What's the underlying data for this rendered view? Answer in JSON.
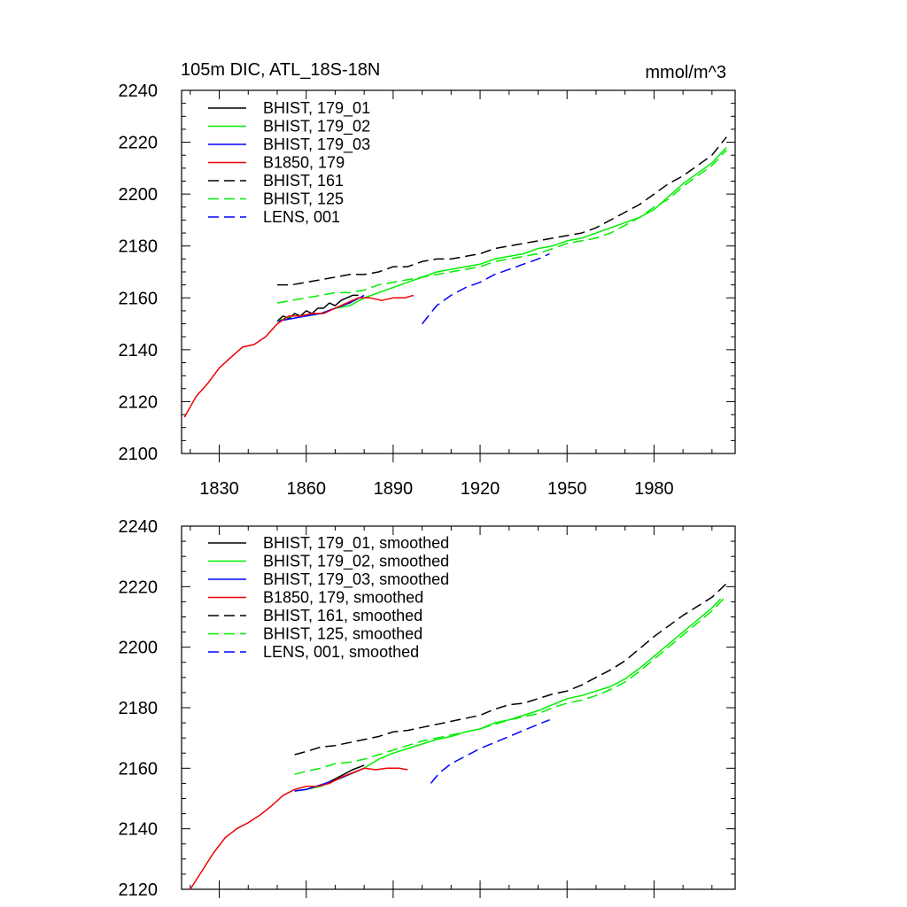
{
  "chart_data": [
    {
      "type": "line",
      "title": "105m DIC, ATL_18S-18N",
      "units": "mmol/m^3",
      "xlim": [
        1817,
        2008
      ],
      "ylim": [
        2100,
        2240
      ],
      "xticks": [
        1830,
        1860,
        1890,
        1920,
        1950,
        1980
      ],
      "yticks": [
        2100,
        2120,
        2140,
        2160,
        2180,
        2200,
        2220,
        2240
      ],
      "legend_position": "top-left",
      "series": [
        {
          "name": "BHIST, 179_01",
          "color": "#000000",
          "dash": "solid",
          "x": [
            1850,
            1852,
            1854,
            1856,
            1858,
            1860,
            1862,
            1864,
            1866,
            1868,
            1870,
            1872,
            1874,
            1876,
            1878
          ],
          "y": [
            2151,
            2153,
            2152,
            2154,
            2153,
            2155,
            2154,
            2156,
            2156,
            2158,
            2157,
            2159,
            2160,
            2161,
            2161
          ]
        },
        {
          "name": "BHIST, 179_02",
          "color": "#00ee00",
          "dash": "solid",
          "x": [
            1850,
            1855,
            1860,
            1865,
            1870,
            1875,
            1880,
            1885,
            1890,
            1895,
            1900,
            1905,
            1910,
            1915,
            1920,
            1925,
            1930,
            1935,
            1940,
            1945,
            1950,
            1955,
            1960,
            1965,
            1970,
            1975,
            1980,
            1985,
            1990,
            1995,
            2000,
            2005
          ],
          "y": [
            2151,
            2153,
            2153,
            2154,
            2156,
            2157,
            2160,
            2162,
            2164,
            2166,
            2168,
            2170,
            2171,
            2172,
            2173,
            2175,
            2176,
            2177,
            2179,
            2180,
            2182,
            2183,
            2185,
            2187,
            2189,
            2191,
            2194,
            2199,
            2204,
            2208,
            2212,
            2218
          ]
        },
        {
          "name": "BHIST, 179_03",
          "color": "#0000ff",
          "dash": "solid",
          "x": [
            1850,
            1855,
            1860,
            1865,
            1870,
            1875,
            1880
          ],
          "y": [
            2151,
            2152,
            2153,
            2154,
            2156,
            2158,
            2161
          ]
        },
        {
          "name": "B1850, 179",
          "color": "#ee0000",
          "dash": "solid",
          "x": [
            1818,
            1822,
            1826,
            1830,
            1834,
            1838,
            1842,
            1846,
            1850,
            1854,
            1858,
            1862,
            1866,
            1870,
            1874,
            1878,
            1882,
            1886,
            1890,
            1894,
            1897
          ],
          "y": [
            2114,
            2122,
            2127,
            2133,
            2137,
            2141,
            2142,
            2145,
            2150,
            2153,
            2153,
            2154,
            2154,
            2156,
            2158,
            2160,
            2160,
            2159,
            2160,
            2160,
            2161
          ]
        },
        {
          "name": "BHIST, 161",
          "color": "#000000",
          "dash": "dashed",
          "x": [
            1850,
            1855,
            1860,
            1865,
            1870,
            1875,
            1880,
            1885,
            1890,
            1895,
            1900,
            1905,
            1910,
            1915,
            1920,
            1925,
            1930,
            1935,
            1940,
            1945,
            1950,
            1955,
            1960,
            1965,
            1970,
            1975,
            1980,
            1985,
            1990,
            1995,
            2000,
            2005
          ],
          "y": [
            2165,
            2165,
            2166,
            2167,
            2168,
            2169,
            2169,
            2170,
            2172,
            2172,
            2174,
            2175,
            2175,
            2176,
            2177,
            2179,
            2180,
            2181,
            2182,
            2183,
            2184,
            2185,
            2187,
            2190,
            2193,
            2196,
            2200,
            2204,
            2207,
            2211,
            2215,
            2222
          ]
        },
        {
          "name": "BHIST, 125",
          "color": "#00ee00",
          "dash": "dashed",
          "x": [
            1850,
            1855,
            1860,
            1865,
            1870,
            1875,
            1880,
            1885,
            1890,
            1895,
            1900,
            1905,
            1910,
            1915,
            1920,
            1925,
            1930,
            1935,
            1940,
            1945,
            1950,
            1955,
            1960,
            1965,
            1970,
            1975,
            1980,
            1985,
            1990,
            1995,
            2000,
            2005
          ],
          "y": [
            2158,
            2159,
            2160,
            2161,
            2162,
            2162,
            2163,
            2165,
            2166,
            2167,
            2168,
            2169,
            2170,
            2171,
            2172,
            2174,
            2175,
            2176,
            2177,
            2179,
            2181,
            2182,
            2183,
            2185,
            2188,
            2191,
            2195,
            2198,
            2203,
            2207,
            2211,
            2217
          ]
        },
        {
          "name": "LENS, 001",
          "color": "#0000ff",
          "dash": "dashed",
          "x": [
            1900,
            1905,
            1910,
            1915,
            1920,
            1925,
            1930,
            1935,
            1940,
            1944
          ],
          "y": [
            2150,
            2157,
            2161,
            2164,
            2166,
            2169,
            2171,
            2173,
            2175,
            2177
          ]
        }
      ]
    },
    {
      "type": "line",
      "title": "",
      "units": "",
      "xlim": [
        1817,
        2008
      ],
      "ylim": [
        2120,
        2240
      ],
      "xticks": [
        1830,
        1860,
        1890,
        1920,
        1950,
        1980
      ],
      "yticks": [
        2120,
        2140,
        2160,
        2180,
        2200,
        2220,
        2240
      ],
      "legend_position": "top-left",
      "series": [
        {
          "name": "BHIST, 179_01, smoothed",
          "color": "#000000",
          "dash": "solid",
          "x": [
            1856,
            1860,
            1864,
            1868,
            1872,
            1876,
            1880
          ],
          "y": [
            2152.5,
            2153,
            2154,
            2155.5,
            2157.5,
            2159.5,
            2161
          ]
        },
        {
          "name": "BHIST, 179_02, smoothed",
          "color": "#00ee00",
          "dash": "solid",
          "x": [
            1856,
            1860,
            1865,
            1870,
            1875,
            1880,
            1885,
            1890,
            1895,
            1900,
            1905,
            1910,
            1915,
            1920,
            1925,
            1930,
            1935,
            1940,
            1945,
            1950,
            1955,
            1960,
            1965,
            1970,
            1975,
            1980,
            1985,
            1990,
            1995,
            2000,
            2003
          ],
          "y": [
            2152.5,
            2153,
            2154,
            2156,
            2158,
            2160,
            2163,
            2165,
            2166.5,
            2168,
            2169.5,
            2170.5,
            2172,
            2173,
            2175,
            2176,
            2177.5,
            2179,
            2181,
            2183,
            2184,
            2185.5,
            2187,
            2189.5,
            2193,
            2197,
            2201,
            2205,
            2209,
            2213,
            2216
          ]
        },
        {
          "name": "BHIST, 179_03, smoothed",
          "color": "#0000ff",
          "dash": "solid",
          "x": [
            1856,
            1860,
            1865,
            1870,
            1875,
            1880
          ],
          "y": [
            2152.5,
            2153,
            2154.5,
            2156,
            2158,
            2160
          ]
        },
        {
          "name": "B1850, 179, smoothed",
          "color": "#ee0000",
          "dash": "solid",
          "x": [
            1820,
            1824,
            1828,
            1832,
            1836,
            1840,
            1844,
            1848,
            1852,
            1856,
            1860,
            1864,
            1868,
            1872,
            1876,
            1880,
            1884,
            1888,
            1892,
            1895
          ],
          "y": [
            2120,
            2126,
            2132,
            2137,
            2140,
            2142,
            2144.5,
            2147.5,
            2151,
            2153,
            2154,
            2154,
            2155,
            2157,
            2158.5,
            2160,
            2159.5,
            2160,
            2160,
            2159.5
          ]
        },
        {
          "name": "BHIST, 161, smoothed",
          "color": "#000000",
          "dash": "dashed",
          "x": [
            1856,
            1860,
            1865,
            1870,
            1875,
            1880,
            1885,
            1890,
            1895,
            1900,
            1905,
            1910,
            1915,
            1920,
            1925,
            1930,
            1935,
            1940,
            1945,
            1950,
            1955,
            1960,
            1965,
            1970,
            1975,
            1980,
            1985,
            1990,
            1995,
            2000,
            2005
          ],
          "y": [
            2164.5,
            2165.5,
            2167,
            2167.5,
            2168.5,
            2169.5,
            2170.5,
            2172,
            2172.5,
            2173.5,
            2174.5,
            2175.5,
            2176.5,
            2177.5,
            2179.5,
            2181,
            2181.5,
            2183,
            2184.5,
            2185.5,
            2187.5,
            2190,
            2192.5,
            2195.5,
            2199.5,
            2203.5,
            2207,
            2210.5,
            2213.5,
            2216.5,
            2221
          ]
        },
        {
          "name": "BHIST, 125, smoothed",
          "color": "#00ee00",
          "dash": "dashed",
          "x": [
            1856,
            1860,
            1865,
            1870,
            1875,
            1880,
            1885,
            1890,
            1895,
            1900,
            1905,
            1910,
            1915,
            1920,
            1925,
            1930,
            1935,
            1940,
            1945,
            1950,
            1955,
            1960,
            1965,
            1970,
            1975,
            1980,
            1985,
            1990,
            1995,
            2000,
            2005
          ],
          "y": [
            2158,
            2159,
            2160,
            2161.5,
            2162,
            2163,
            2164.5,
            2166,
            2167.5,
            2169,
            2170,
            2171,
            2172,
            2173,
            2174.5,
            2176,
            2177,
            2178,
            2180,
            2181.5,
            2182.5,
            2184,
            2186,
            2188.5,
            2192,
            2196,
            2200,
            2204,
            2208,
            2212,
            2217
          ]
        },
        {
          "name": "LENS, 001, smoothed",
          "color": "#0000ff",
          "dash": "dashed",
          "x": [
            1903,
            1906,
            1910,
            1915,
            1920,
            1925,
            1930,
            1935,
            1940,
            1944
          ],
          "y": [
            2155,
            2158.5,
            2161.5,
            2164,
            2166.5,
            2168.5,
            2170.5,
            2172.5,
            2174.5,
            2176
          ]
        }
      ]
    }
  ]
}
